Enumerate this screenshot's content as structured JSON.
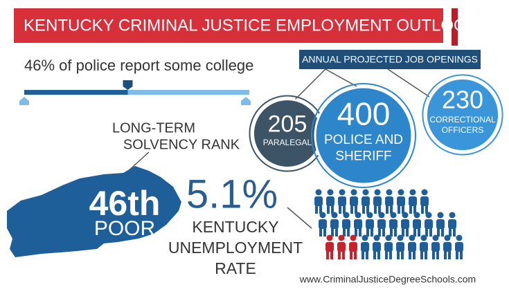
{
  "header": {
    "title": "KENTUCKY CRIMINAL JUSTICE EMPLOYMENT OUTLOOK"
  },
  "college": {
    "label": "46% of police report some college",
    "percent": 46
  },
  "job_openings": {
    "title": "ANNUAL PROJECTED JOB OPENINGS",
    "items": [
      {
        "value": 205,
        "label_lines": [
          "PARALEGAL"
        ]
      },
      {
        "value": 400,
        "label_lines": [
          "POLICE AND",
          "SHERIFF"
        ]
      },
      {
        "value": 230,
        "label_lines": [
          "CORRECTIONAL",
          "OFFICERS"
        ]
      }
    ]
  },
  "solvency": {
    "title_lines": [
      "LONG-TERM",
      "SOLVENCY RANK"
    ],
    "rank": "46th",
    "rating": "POOR"
  },
  "unemployment": {
    "value": "5.1%",
    "label_lines": [
      "KENTUCKY",
      "UNEMPLOYMENT",
      "RATE"
    ]
  },
  "footer": {
    "url": "www.CriminalJusticeDegreeSchools.com"
  }
}
